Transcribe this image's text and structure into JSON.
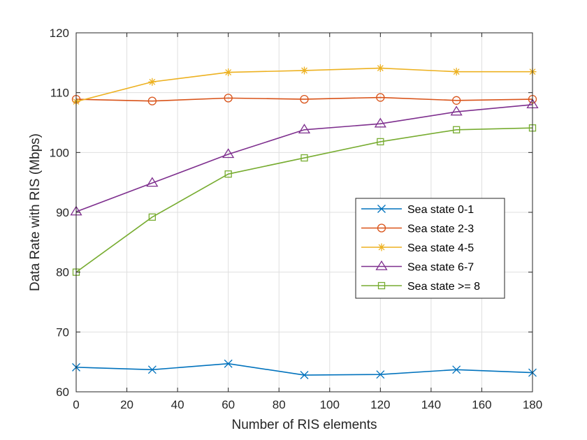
{
  "chart_data": {
    "type": "line",
    "title": "",
    "xlabel": "Number of RIS elements",
    "ylabel": "Data Rate with RIS (Mbps)",
    "xlim": [
      0,
      180
    ],
    "ylim": [
      60,
      120
    ],
    "xticks": [
      0,
      20,
      40,
      60,
      80,
      100,
      120,
      140,
      160,
      180
    ],
    "yticks": [
      60,
      70,
      80,
      90,
      100,
      110,
      120
    ],
    "grid": true,
    "legend_position": "center-right",
    "x": [
      0,
      30,
      60,
      90,
      120,
      150,
      180
    ],
    "series": [
      {
        "name": "Sea state 0-1",
        "color": "#0072BD",
        "marker": "x",
        "values": [
          64.1,
          63.7,
          64.7,
          62.8,
          62.9,
          63.7,
          63.2
        ]
      },
      {
        "name": "Sea state 2-3",
        "color": "#D95319",
        "marker": "circle",
        "values": [
          108.9,
          108.6,
          109.1,
          108.9,
          109.2,
          108.7,
          108.9
        ]
      },
      {
        "name": "Sea state 4-5",
        "color": "#EDB120",
        "marker": "star",
        "values": [
          108.5,
          111.8,
          113.4,
          113.7,
          114.1,
          113.5,
          113.5
        ]
      },
      {
        "name": "Sea state 6-7",
        "color": "#7E2F8E",
        "marker": "triangle",
        "values": [
          90.1,
          94.9,
          99.7,
          103.8,
          104.8,
          106.8,
          108.0
        ]
      },
      {
        "name": "Sea state >= 8",
        "color": "#77AC30",
        "marker": "square",
        "values": [
          80.0,
          89.2,
          96.4,
          99.1,
          101.8,
          103.8,
          104.1
        ]
      }
    ]
  }
}
